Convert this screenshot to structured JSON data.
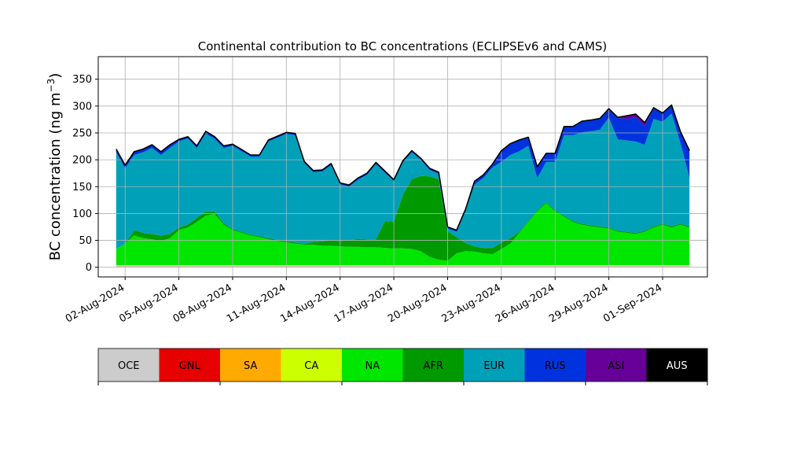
{
  "chart_data": {
    "type": "area",
    "title": "Continental contribution to BC concentrations (ECLIPSEv6 and CAMS)",
    "ylabel_main": "BC concentration (ng m",
    "ylabel_sup": "−3",
    "ylabel_close": ")",
    "xlabel": "",
    "xlim": [
      "2024-07-31T12:00",
      "2024-09-03T12:00"
    ],
    "ylim": [
      -18,
      392
    ],
    "yticks": [
      0,
      50,
      100,
      150,
      200,
      250,
      300,
      350
    ],
    "xticks": [
      "02-Aug-2024",
      "05-Aug-2024",
      "08-Aug-2024",
      "11-Aug-2024",
      "14-Aug-2024",
      "17-Aug-2024",
      "20-Aug-2024",
      "23-Aug-2024",
      "26-Aug-2024",
      "29-Aug-2024",
      "01-Sep-2024"
    ],
    "grid": true,
    "legend_placement": "bottom-colorbar",
    "series_order": [
      "OCE",
      "GNL",
      "SA",
      "CA",
      "NA",
      "AFR",
      "EUR",
      "RUS",
      "ASI",
      "AUS"
    ],
    "series": [
      {
        "name": "OCE",
        "color": "#cccccc"
      },
      {
        "name": "GNL",
        "color": "#e60000"
      },
      {
        "name": "SA",
        "color": "#ffaa00"
      },
      {
        "name": "CA",
        "color": "#ccff00"
      },
      {
        "name": "NA",
        "color": "#00e600"
      },
      {
        "name": "AFR",
        "color": "#009900"
      },
      {
        "name": "EUR",
        "color": "#00a0b9"
      },
      {
        "name": "RUS",
        "color": "#0033dd"
      },
      {
        "name": "ASI",
        "color": "#660099"
      },
      {
        "name": "AUS",
        "color": "#000000"
      }
    ],
    "x": [
      "2024-08-01T12:00",
      "2024-08-02T00:00",
      "2024-08-02T12:00",
      "2024-08-03T00:00",
      "2024-08-03T12:00",
      "2024-08-04T00:00",
      "2024-08-04T12:00",
      "2024-08-05T00:00",
      "2024-08-05T12:00",
      "2024-08-06T00:00",
      "2024-08-06T12:00",
      "2024-08-07T00:00",
      "2024-08-07T12:00",
      "2024-08-08T00:00",
      "2024-08-08T12:00",
      "2024-08-09T00:00",
      "2024-08-09T12:00",
      "2024-08-10T00:00",
      "2024-08-10T12:00",
      "2024-08-11T00:00",
      "2024-08-11T12:00",
      "2024-08-12T00:00",
      "2024-08-12T12:00",
      "2024-08-13T00:00",
      "2024-08-13T12:00",
      "2024-08-14T00:00",
      "2024-08-14T12:00",
      "2024-08-15T00:00",
      "2024-08-15T12:00",
      "2024-08-16T00:00",
      "2024-08-16T12:00",
      "2024-08-17T00:00",
      "2024-08-17T12:00",
      "2024-08-18T00:00",
      "2024-08-18T12:00",
      "2024-08-19T00:00",
      "2024-08-19T12:00",
      "2024-08-20T00:00",
      "2024-08-20T12:00",
      "2024-08-21T00:00",
      "2024-08-21T12:00",
      "2024-08-22T00:00",
      "2024-08-22T12:00",
      "2024-08-23T00:00",
      "2024-08-23T12:00",
      "2024-08-24T00:00",
      "2024-08-24T12:00",
      "2024-08-25T00:00",
      "2024-08-25T12:00",
      "2024-08-26T00:00",
      "2024-08-26T12:00",
      "2024-08-27T00:00",
      "2024-08-27T12:00",
      "2024-08-28T00:00",
      "2024-08-28T12:00",
      "2024-08-29T00:00",
      "2024-08-29T12:00",
      "2024-08-30T00:00",
      "2024-08-30T12:00",
      "2024-08-31T00:00",
      "2024-08-31T12:00",
      "2024-09-01T00:00",
      "2024-09-01T12:00",
      "2024-09-02T00:00",
      "2024-09-02T12:00"
    ],
    "values": {
      "OCE": [
        2,
        2,
        2,
        2,
        2,
        2,
        2,
        2,
        2,
        2,
        2,
        2,
        2,
        2,
        2,
        2,
        2,
        2,
        2,
        2,
        2,
        2,
        2,
        2,
        2,
        2,
        2,
        2,
        2,
        2,
        2,
        2,
        2,
        2,
        2,
        2,
        2,
        2,
        2,
        2,
        2,
        2,
        2,
        2,
        2,
        2,
        2,
        2,
        2,
        2,
        2,
        2,
        2,
        2,
        2,
        2,
        2,
        2,
        2,
        2,
        2,
        2,
        2,
        2,
        2
      ],
      "GNL": [
        0,
        0,
        0,
        0,
        0,
        0,
        0,
        0,
        0,
        0,
        0,
        0,
        0,
        0,
        0,
        0,
        0,
        0,
        0,
        0,
        0,
        0,
        0,
        0,
        0,
        0,
        0,
        0,
        0,
        0,
        0,
        0,
        0,
        0,
        0,
        0,
        0,
        0,
        0,
        0,
        0,
        0,
        0,
        0,
        0,
        0,
        0,
        0,
        0,
        0,
        0,
        0,
        0,
        0,
        0,
        0,
        0,
        0,
        0,
        0,
        0,
        0,
        0,
        0,
        0
      ],
      "SA": [
        1,
        1,
        1,
        1,
        1,
        1,
        1,
        1,
        1,
        1,
        1,
        1,
        1,
        1,
        1,
        1,
        1,
        1,
        1,
        1,
        1,
        1,
        1,
        1,
        1,
        1,
        1,
        1,
        1,
        1,
        1,
        1,
        1,
        1,
        1,
        1,
        1,
        1,
        1,
        1,
        1,
        1,
        1,
        1,
        1,
        1,
        1,
        1,
        1,
        1,
        1,
        1,
        1,
        1,
        1,
        1,
        1,
        1,
        1,
        1,
        1,
        1,
        1,
        1,
        1
      ],
      "CA": [
        1,
        1,
        1,
        1,
        1,
        1,
        1,
        1,
        1,
        1,
        1,
        1,
        1,
        1,
        1,
        1,
        1,
        1,
        1,
        1,
        1,
        1,
        1,
        1,
        1,
        1,
        1,
        1,
        1,
        1,
        1,
        1,
        1,
        1,
        1,
        1,
        1,
        1,
        1,
        1,
        1,
        1,
        1,
        1,
        1,
        1,
        1,
        1,
        1,
        1,
        1,
        1,
        1,
        1,
        1,
        1,
        1,
        1,
        1,
        1,
        1,
        1,
        1,
        1,
        1
      ],
      "NA": [
        30,
        40,
        55,
        50,
        48,
        45,
        50,
        65,
        70,
        80,
        92,
        95,
        75,
        65,
        60,
        55,
        52,
        48,
        45,
        42,
        40,
        38,
        38,
        36,
        36,
        35,
        34,
        34,
        33,
        33,
        32,
        31,
        31,
        30,
        26,
        15,
        10,
        8,
        22,
        26,
        25,
        22,
        20,
        30,
        40,
        60,
        80,
        100,
        115,
        100,
        90,
        80,
        75,
        72,
        70,
        68,
        62,
        60,
        58,
        62,
        70,
        75,
        70,
        75,
        70
      ],
      "AFR": [
        0,
        0,
        10,
        10,
        10,
        10,
        8,
        5,
        6,
        8,
        8,
        5,
        3,
        2,
        2,
        2,
        2,
        2,
        2,
        2,
        2,
        2,
        5,
        8,
        10,
        10,
        12,
        15,
        15,
        15,
        50,
        50,
        100,
        130,
        140,
        150,
        150,
        55,
        30,
        15,
        10,
        10,
        12,
        12,
        10,
        2,
        2,
        2,
        2,
        2,
        2,
        2,
        2,
        2,
        2,
        2,
        2,
        2,
        2,
        2,
        2,
        2,
        2,
        2,
        2
      ],
      "EUR": [
        180,
        140,
        140,
        150,
        160,
        150,
        160,
        160,
        160,
        130,
        145,
        135,
        140,
        155,
        150,
        145,
        148,
        180,
        190,
        200,
        200,
        150,
        130,
        130,
        140,
        105,
        100,
        110,
        120,
        140,
        90,
        75,
        60,
        50,
        30,
        12,
        10,
        5,
        10,
        60,
        115,
        130,
        150,
        150,
        155,
        150,
        140,
        60,
        75,
        90,
        150,
        160,
        170,
        175,
        180,
        205,
        170,
        170,
        170,
        160,
        200,
        190,
        210,
        150,
        90
      ],
      "RUS": [
        5,
        5,
        5,
        5,
        5,
        5,
        5,
        3,
        2,
        3,
        3,
        3,
        3,
        2,
        2,
        2,
        2,
        2,
        2,
        2,
        2,
        2,
        2,
        2,
        2,
        2,
        2,
        2,
        2,
        2,
        2,
        2,
        2,
        2,
        2,
        2,
        2,
        2,
        2,
        2,
        5,
        5,
        5,
        20,
        20,
        20,
        15,
        20,
        15,
        15,
        15,
        15,
        20,
        20,
        20,
        15,
        40,
        40,
        45,
        35,
        20,
        15,
        15,
        20,
        50
      ],
      "ASI": [
        0,
        0,
        0,
        0,
        0,
        0,
        0,
        0,
        0,
        0,
        0,
        0,
        0,
        0,
        0,
        0,
        0,
        0,
        0,
        0,
        0,
        0,
        0,
        0,
        0,
        0,
        0,
        0,
        0,
        0,
        0,
        0,
        0,
        0,
        0,
        0,
        0,
        0,
        0,
        0,
        0,
        0,
        0,
        0,
        0,
        0,
        0,
        0,
        0,
        0,
        0,
        0,
        0,
        0,
        0,
        0,
        0,
        5,
        5,
        5,
        0,
        0,
        0,
        0,
        0
      ],
      "AUS": [
        1,
        1,
        1,
        1,
        1,
        1,
        1,
        1,
        1,
        1,
        1,
        1,
        1,
        1,
        1,
        1,
        1,
        1,
        1,
        1,
        1,
        1,
        1,
        1,
        1,
        1,
        1,
        1,
        1,
        1,
        1,
        1,
        1,
        1,
        1,
        1,
        1,
        1,
        1,
        1,
        1,
        1,
        1,
        1,
        1,
        1,
        1,
        1,
        1,
        1,
        1,
        1,
        1,
        1,
        1,
        1,
        1,
        1,
        1,
        1,
        1,
        1,
        1,
        1,
        1
      ]
    }
  }
}
